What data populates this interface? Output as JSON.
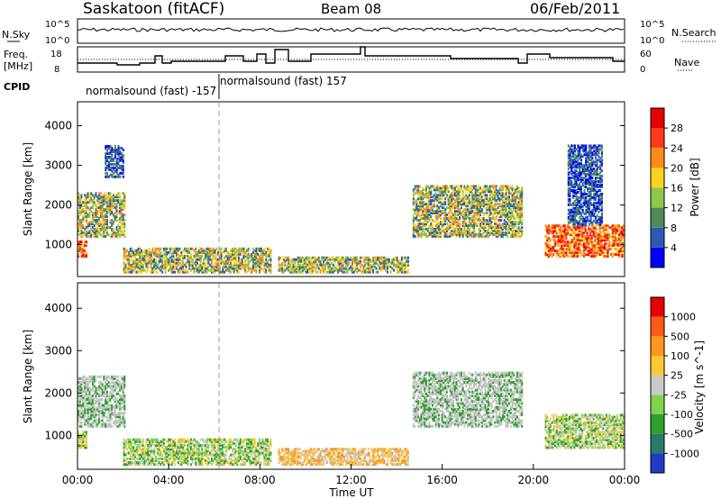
{
  "header": {
    "station": "Saskatoon (fitACF)",
    "beam": "Beam 08",
    "date": "06/Feb/2011"
  },
  "top_panels": {
    "noise": {
      "left_label": "N.Sky",
      "right_label": "N.Search",
      "left_ticks": [
        "10^5",
        "10^0"
      ],
      "right_ticks": [
        "10^5",
        "10^0"
      ]
    },
    "freq": {
      "left_label_line1": "Freq.",
      "left_label_line2": "[MHz]",
      "right_label": "Nave",
      "left_ticks": [
        "18",
        "8"
      ],
      "right_ticks": [
        "60",
        "0"
      ]
    },
    "cpid": {
      "label": "CPID",
      "segments": [
        "normalsound (fast) -157",
        "normalsound (fast) 157"
      ]
    }
  },
  "chart_data": [
    {
      "type": "heatmap",
      "name": "power",
      "ylabel": "Slant Range [km]",
      "yticks": [
        "1000",
        "2000",
        "3000",
        "4000"
      ],
      "ylim": [
        200,
        4600
      ],
      "xlim": [
        0,
        24
      ],
      "colorbar": {
        "label": "Power [dB]",
        "ticks": [
          "4",
          "8",
          "12",
          "16",
          "20",
          "24",
          "28"
        ],
        "colors": [
          "#0000ff",
          "#2a5ab4",
          "#4e8a5a",
          "#8cc84a",
          "#ffd21e",
          "#ff8c1a",
          "#ff3a1a",
          "#e60000"
        ]
      },
      "regions": [
        {
          "t0": 0.0,
          "t1": 2.1,
          "r0": 1200,
          "r1": 2300,
          "level": "mid"
        },
        {
          "t0": 0.0,
          "t1": 0.4,
          "r0": 700,
          "r1": 1100,
          "level": "high"
        },
        {
          "t0": 1.2,
          "t1": 2.0,
          "r0": 2700,
          "r1": 3500,
          "level": "low"
        },
        {
          "t0": 2.0,
          "t1": 8.5,
          "r0": 300,
          "r1": 900,
          "level": "mid"
        },
        {
          "t0": 8.8,
          "t1": 14.5,
          "r0": 300,
          "r1": 700,
          "level": "mid"
        },
        {
          "t0": 14.7,
          "t1": 19.5,
          "r0": 1200,
          "r1": 2500,
          "level": "mid"
        },
        {
          "t0": 20.5,
          "t1": 24.0,
          "r0": 700,
          "r1": 1500,
          "level": "high"
        },
        {
          "t0": 21.5,
          "t1": 23.0,
          "r0": 1500,
          "r1": 3500,
          "level": "low"
        }
      ],
      "gaps": []
    },
    {
      "type": "heatmap",
      "name": "velocity",
      "ylabel": "Slant Range [km]",
      "yticks": [
        "1000",
        "2000",
        "3000",
        "4000"
      ],
      "ylim": [
        200,
        4600
      ],
      "xlim": [
        0,
        24
      ],
      "xticks": [
        "00:00",
        "04:00",
        "08:00",
        "12:00",
        "16:00",
        "20:00",
        "00:00"
      ],
      "xlabel": "Time UT",
      "colorbar": {
        "label": "Velocity [m s^-1]",
        "ticks": [
          "1000",
          "500",
          "100",
          "25",
          "-25",
          "-100",
          "-500",
          "-1000"
        ],
        "colors": [
          "#1e3cc8",
          "#2a7a6a",
          "#2ea02e",
          "#7ed24e",
          "#c8c8c8",
          "#ffc832",
          "#ff9620",
          "#ff5a14",
          "#e60000"
        ]
      },
      "regions": [
        {
          "t0": 0.0,
          "t1": 2.1,
          "r0": 1200,
          "r1": 2400,
          "level": "grey"
        },
        {
          "t0": 0.0,
          "t1": 0.4,
          "r0": 700,
          "r1": 1100,
          "level": "green"
        },
        {
          "t0": 2.0,
          "t1": 8.5,
          "r0": 300,
          "r1": 900,
          "level": "green"
        },
        {
          "t0": 8.8,
          "t1": 14.5,
          "r0": 300,
          "r1": 700,
          "level": "orange"
        },
        {
          "t0": 14.7,
          "t1": 19.5,
          "r0": 1200,
          "r1": 2500,
          "level": "grey"
        },
        {
          "t0": 20.5,
          "t1": 24.0,
          "r0": 700,
          "r1": 1500,
          "level": "green"
        }
      ]
    }
  ]
}
